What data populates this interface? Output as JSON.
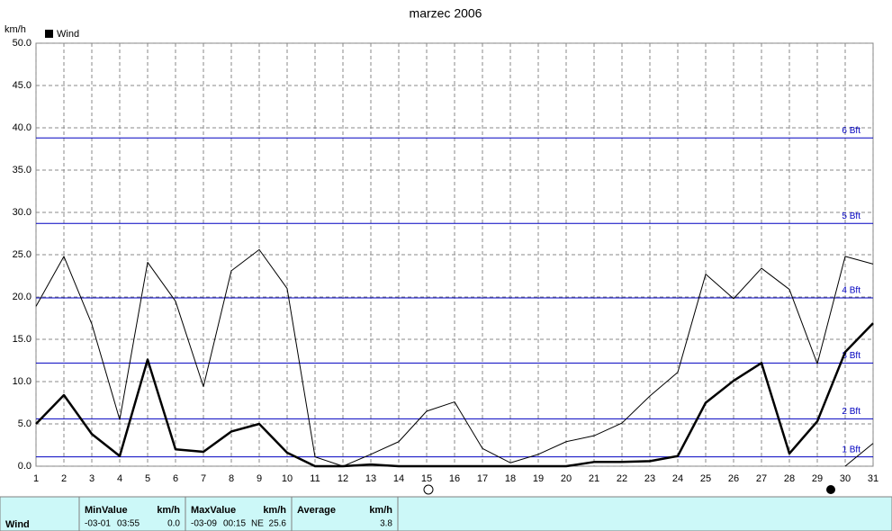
{
  "chart_data": {
    "type": "line",
    "title": "marzec 2006",
    "y_label": "km/h",
    "x": [
      1,
      2,
      3,
      4,
      5,
      6,
      7,
      8,
      9,
      10,
      11,
      12,
      13,
      14,
      15,
      16,
      17,
      18,
      19,
      20,
      21,
      22,
      23,
      24,
      25,
      26,
      27,
      28,
      29,
      30,
      31
    ],
    "series": [
      {
        "name": "Wind",
        "color": "#000000",
        "width": 2.5,
        "values": [
          5.0,
          8.4,
          3.8,
          1.2,
          12.6,
          2.0,
          1.7,
          4.1,
          5.0,
          1.6,
          0,
          0,
          0.2,
          0,
          0,
          0,
          0,
          0,
          0,
          0,
          0.5,
          0.5,
          0.6,
          1.2,
          7.5,
          10.1,
          12.2,
          1.5,
          5.3,
          13.5,
          16.9
        ]
      },
      {
        "color": "#000000",
        "width": 1,
        "values": [
          18.9,
          24.8,
          16.8,
          5.5,
          24.1,
          19.5,
          9.4,
          23.1,
          25.6,
          21.0,
          1.1,
          0,
          1.4,
          2.9,
          6.5,
          7.6,
          2.1,
          0.4,
          1.4,
          2.9,
          3.6,
          5.1,
          8.3,
          11.1,
          22.7,
          19.8,
          23.4,
          20.9,
          12.1,
          24.8,
          23.9
        ]
      },
      {
        "color": "#000000",
        "width": 1,
        "values": [
          null,
          null,
          null,
          null,
          null,
          null,
          null,
          null,
          null,
          null,
          null,
          null,
          null,
          null,
          null,
          null,
          null,
          null,
          null,
          null,
          null,
          null,
          null,
          null,
          null,
          null,
          null,
          null,
          null,
          0,
          2.7
        ]
      }
    ],
    "xlim": [
      1,
      31
    ],
    "xticks": [
      1,
      2,
      3,
      4,
      5,
      6,
      7,
      8,
      9,
      10,
      11,
      12,
      13,
      14,
      15,
      16,
      17,
      18,
      19,
      20,
      21,
      22,
      23,
      24,
      25,
      26,
      27,
      28,
      29,
      30,
      31
    ],
    "ylim": [
      0,
      50
    ],
    "yticks": [
      {
        "value": 0,
        "label": "0.0"
      },
      {
        "value": 5,
        "label": "5.0"
      },
      {
        "value": 10,
        "label": "10.0"
      },
      {
        "value": 15,
        "label": "15.0"
      },
      {
        "value": 20,
        "label": "20.0"
      },
      {
        "value": 25,
        "label": "25.0"
      },
      {
        "value": 30,
        "label": "30.0"
      },
      {
        "value": 35,
        "label": "35.0"
      },
      {
        "value": 40,
        "label": "40.0"
      },
      {
        "value": 45,
        "label": "45.0"
      },
      {
        "value": 50,
        "label": "50.0"
      }
    ],
    "grid": true,
    "reference_color": "#0000c0",
    "reference_lines": [
      {
        "value": 1.1,
        "label": "1 Bft"
      },
      {
        "value": 5.6,
        "label": "2 Bft"
      },
      {
        "value": 12.2,
        "label": "3 Bft"
      },
      {
        "value": 19.9,
        "label": "4 Bft"
      },
      {
        "value": 28.7,
        "label": "5 Bft"
      },
      {
        "value": 38.8,
        "label": "6 Bft"
      }
    ]
  },
  "table": {
    "headers": [
      "MinValue",
      "km/h",
      "MaxValue",
      "km/h",
      "Average",
      "km/h"
    ],
    "row": {
      "name": "Wind",
      "min_date": "-03-01",
      "min_time": "03:55",
      "min_value": "0.0",
      "max_date": "-03-09",
      "max_time": "00:15",
      "max_dir": "NE",
      "max_value": "25.6",
      "average": "3.8"
    }
  }
}
